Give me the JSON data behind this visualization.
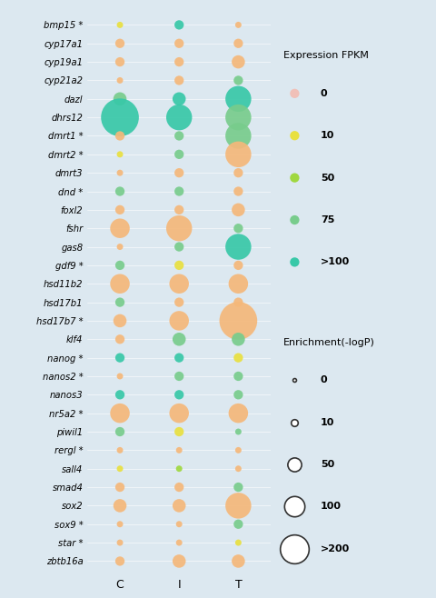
{
  "genes": [
    "bmp15 *",
    "cyp17a1",
    "cyp19a1",
    "cyp21a2",
    "dazl",
    "dhrs12",
    "dmrt1 *",
    "dmrt2 *",
    "dmrt3",
    "dnd *",
    "foxl2",
    "fshr",
    "gas8",
    "gdf9 *",
    "hsd11b2",
    "hsd17b1",
    "hsd17b7 *",
    "klf4",
    "nanog *",
    "nanos2 *",
    "nanos3",
    "nr5a2 *",
    "piwil1",
    "rergl *",
    "sall4",
    "smad4",
    "sox2",
    "sox9 *",
    "star *",
    "zbtb16a"
  ],
  "columns": [
    "C",
    "I",
    "T"
  ],
  "bg_color": "#dce8f0",
  "legend_bg": "#f0f4f8",
  "O": "#f5b87a",
  "Y": "#e8e040",
  "YG": "#a0d840",
  "LG": "#78cc8c",
  "TL": "#38c8a8",
  "PK": "#f0c0b8",
  "legend_fpkm_labels": [
    "0",
    "10",
    "50",
    "75",
    ">100"
  ],
  "legend_fpkm_colors": [
    "#f0c0b8",
    "#e8e040",
    "#a0d840",
    "#78cc8c",
    "#38c8a8"
  ],
  "legend_enrich_labels": [
    "0",
    "10",
    "50",
    "100",
    ">200"
  ]
}
